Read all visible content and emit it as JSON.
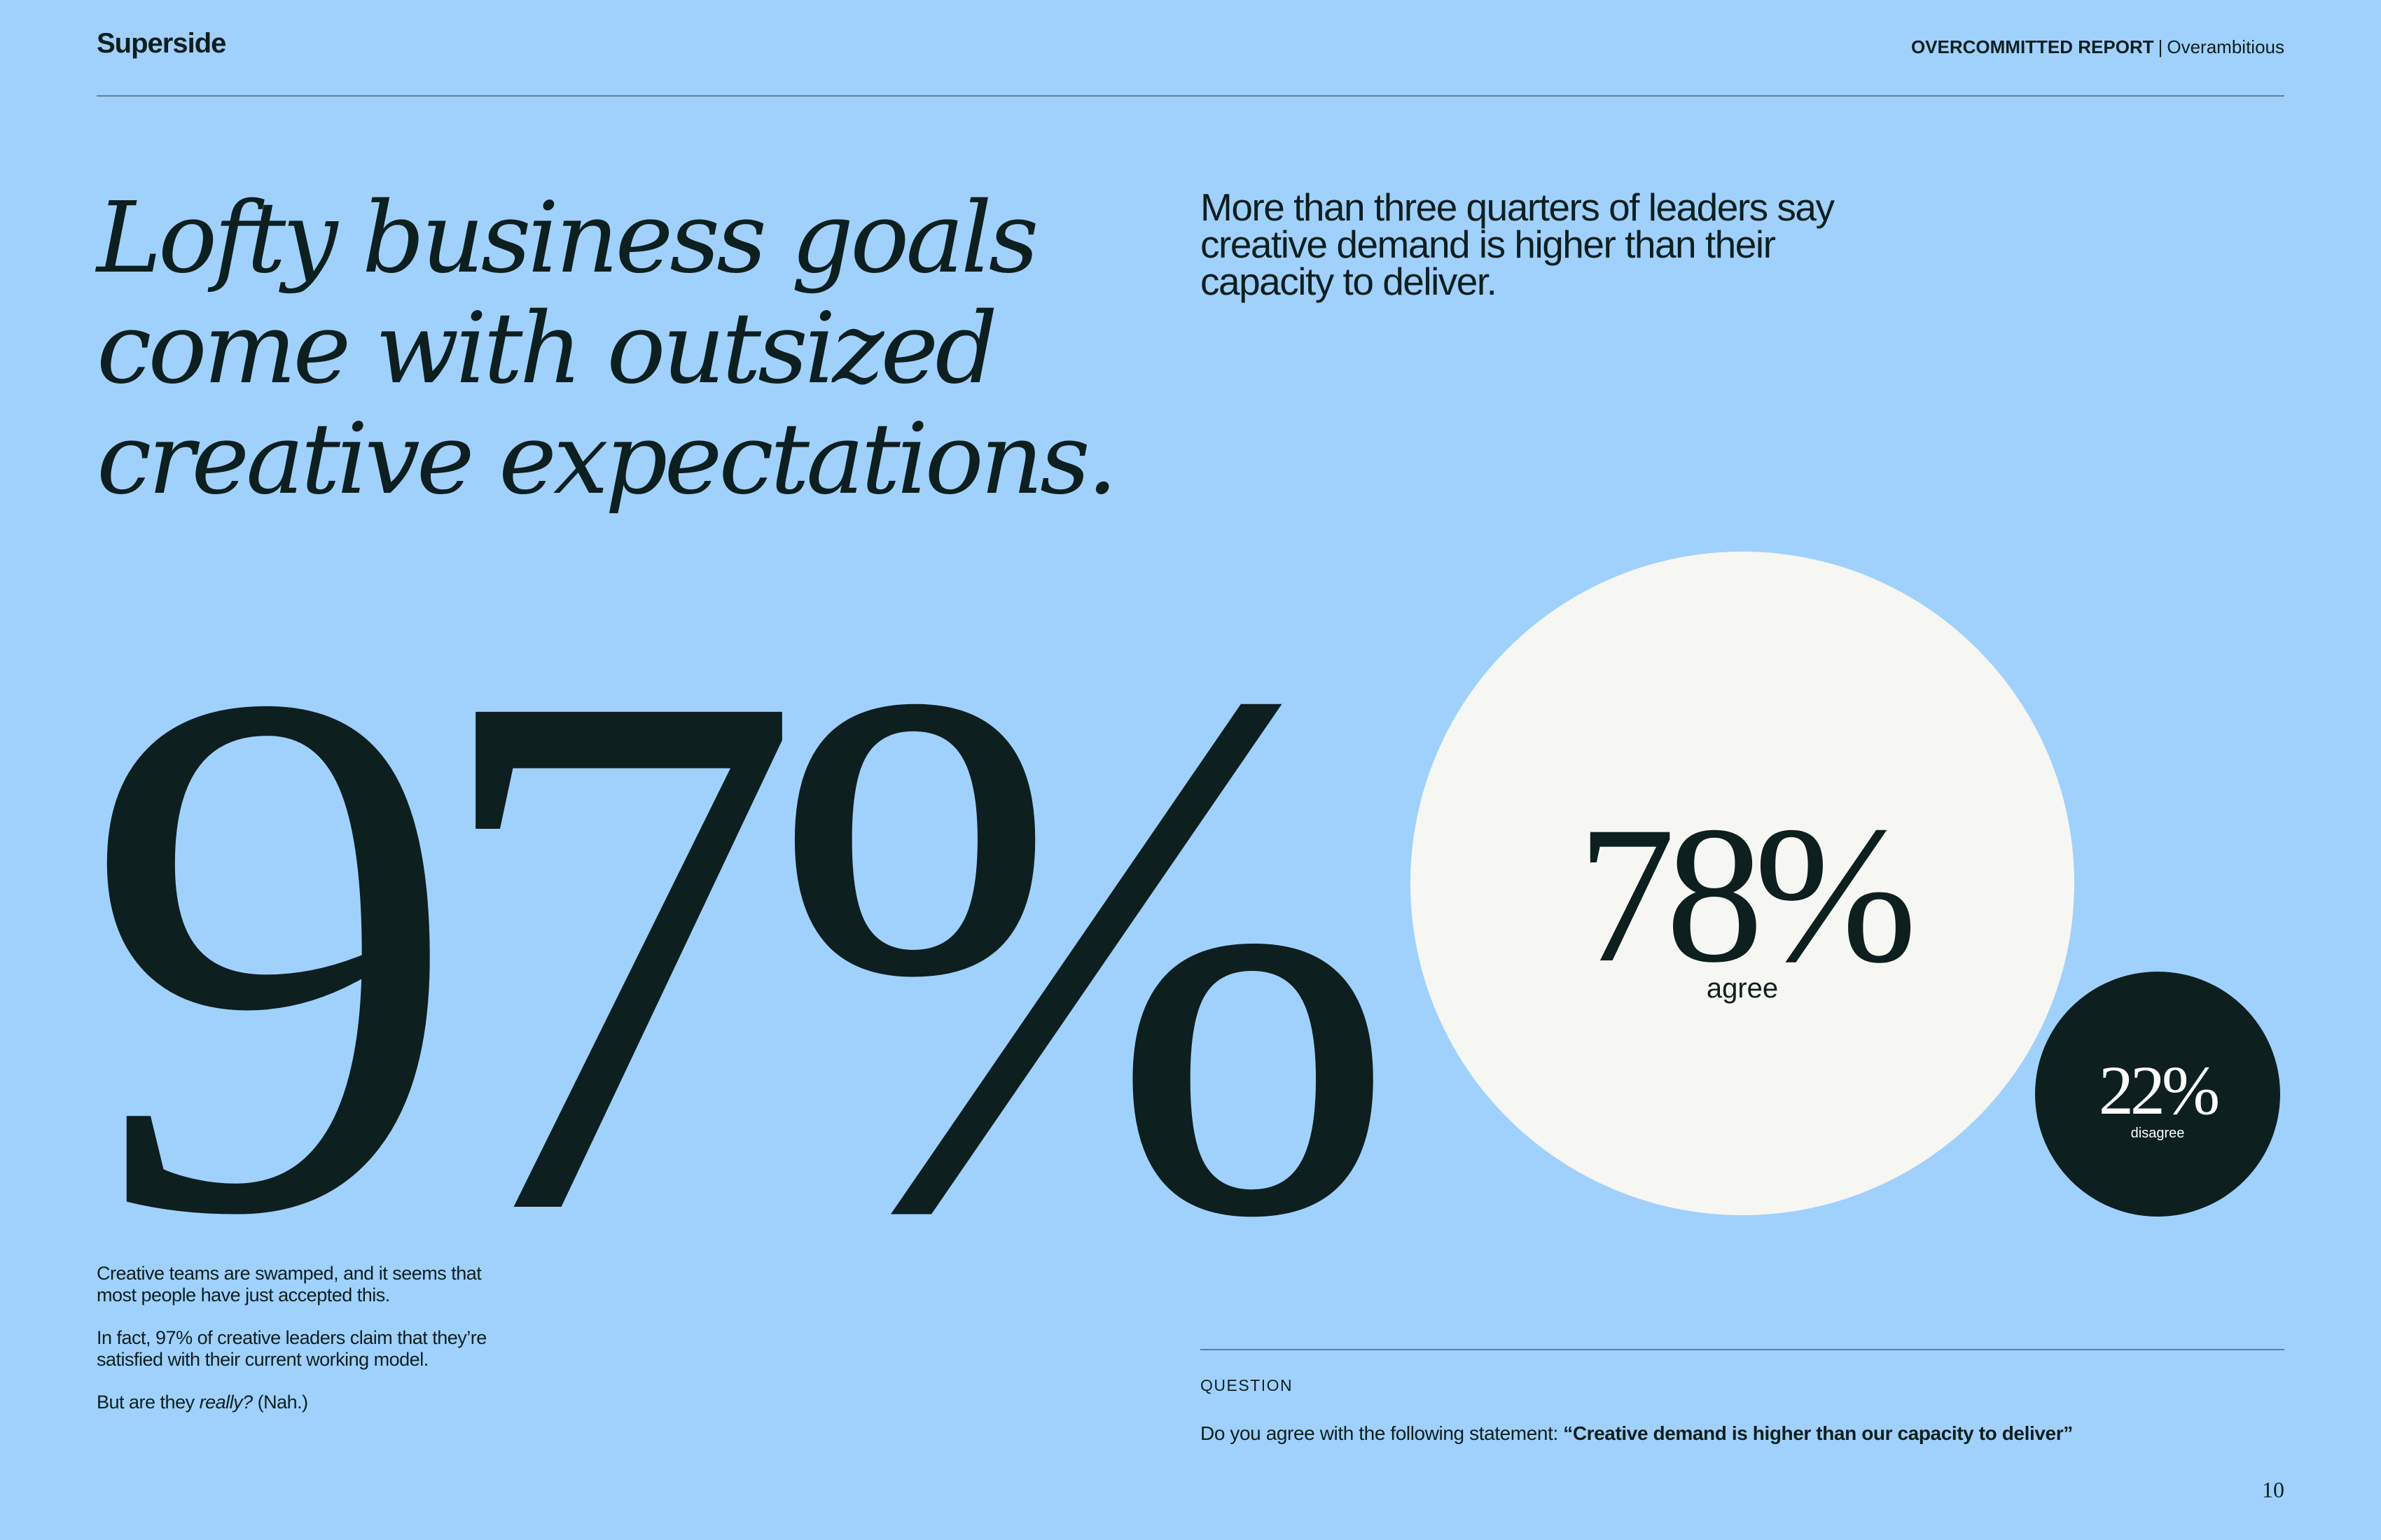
{
  "header": {
    "logo_text": "Superside",
    "report_name": "OVERCOMMITTED REPORT",
    "separator": "|",
    "section_name": "Overambitious"
  },
  "headline": "Lofty business goals come with outsized creative expectations.",
  "big_stat": {
    "value": "97%"
  },
  "body_copy": {
    "p1": "Creative teams are swamped, and it seems that most people have just accepted this.",
    "p2": "In fact, 97% of creative leaders claim that they’re satisfied with their current working model.",
    "p3_start": "But are they ",
    "p3_emphasis": "really?",
    "p3_end": " (Nah.)"
  },
  "subhead": "More than three quarters of leaders say creative demand is higher than their capacity to deliver.",
  "chart_data": {
    "type": "bubble",
    "series": [
      {
        "name": "agree",
        "value": 78,
        "display": "78%",
        "label": "agree",
        "color": "#f6f7f2"
      },
      {
        "name": "disagree",
        "value": 22,
        "display": "22%",
        "label": "disagree",
        "color": "#0d1f1e"
      }
    ]
  },
  "question": {
    "label": "QUESTION",
    "prefix": "Do you agree with the following statement: ",
    "statement": "“Creative demand is higher than our capacity to deliver”"
  },
  "page_number": "10",
  "colors": {
    "background": "#a0d1fd",
    "ink": "#0d1f1e",
    "agree_circle": "#f6f7f2",
    "disagree_circle": "#0d1f1e"
  }
}
